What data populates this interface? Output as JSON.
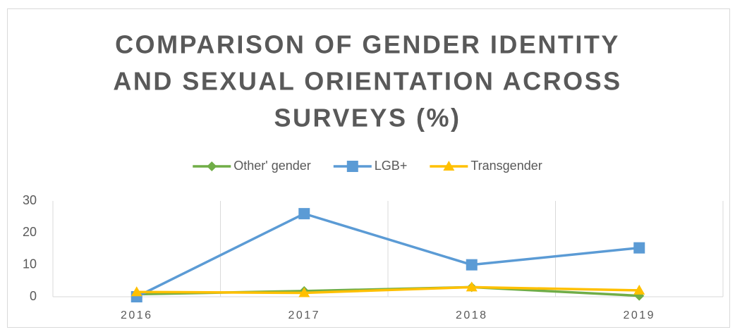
{
  "chart_data": {
    "type": "line",
    "title": [
      "COMPARISON OF GENDER IDENTITY",
      "AND SEXUAL ORIENTATION ACROSS",
      "SURVEYS (%)"
    ],
    "categories": [
      "2016",
      "2017",
      "2018",
      "2019"
    ],
    "series": [
      {
        "name": "Other' gender",
        "color": "#70ad47",
        "marker": "diamond",
        "values": [
          0.8,
          1.8,
          3,
          0.3
        ]
      },
      {
        "name": "LGB+",
        "color": "#5b9bd5",
        "marker": "square",
        "values": [
          0,
          26,
          10,
          15.3
        ]
      },
      {
        "name": "Transgender",
        "color": "#ffc000",
        "marker": "triangle",
        "values": [
          1.5,
          1.2,
          3,
          2
        ]
      }
    ],
    "ylim": [
      0,
      30
    ],
    "yticks": [
      0,
      10,
      20,
      30
    ],
    "xgrid": true,
    "legend": "top"
  }
}
